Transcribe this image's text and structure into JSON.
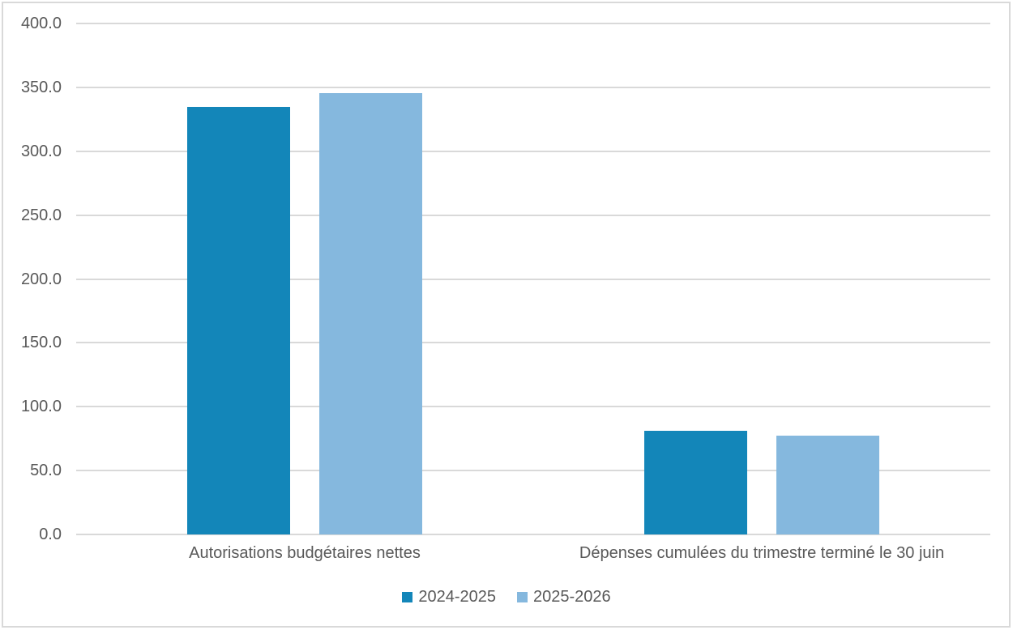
{
  "chart_data": {
    "type": "bar",
    "title": "",
    "xlabel": "",
    "ylabel": "",
    "categories": [
      "Autorisations budgétaires nettes",
      "Dépenses cumulées du trimestre terminé le 30 juin"
    ],
    "series": [
      {
        "name": "2024-2025",
        "color": "#1386B9",
        "values": [
          335.0,
          81.0
        ]
      },
      {
        "name": "2025-2026",
        "color": "#85B8DE",
        "values": [
          345.5,
          77.5
        ]
      }
    ],
    "ylim": [
      0,
      400
    ],
    "yticks": [
      0,
      50,
      100,
      150,
      200,
      250,
      300,
      350,
      400
    ],
    "ytick_labels": [
      "0.0",
      "50.0",
      "100.0",
      "150.0",
      "200.0",
      "250.0",
      "300.0",
      "350.0",
      "400.0"
    ],
    "grid": true,
    "legend_position": "bottom"
  },
  "colors": {
    "gridline": "#d9d9d9",
    "frame_border": "#d9d9d9",
    "axis_text": "#595959",
    "background": "#ffffff"
  }
}
